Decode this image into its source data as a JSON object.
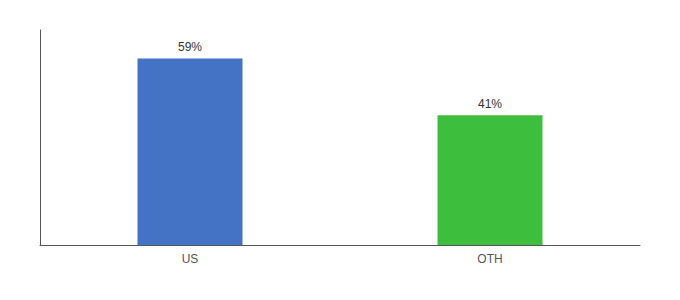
{
  "chart_data": {
    "type": "bar",
    "categories": [
      "US",
      "OTH"
    ],
    "values": [
      59,
      41
    ],
    "value_labels": [
      "59%",
      "41%"
    ],
    "colors": [
      "#4472c4",
      "#3dbf3d"
    ],
    "ylim": [
      0,
      68
    ],
    "grid": false,
    "data_labels": true,
    "tick_labels": "x"
  }
}
